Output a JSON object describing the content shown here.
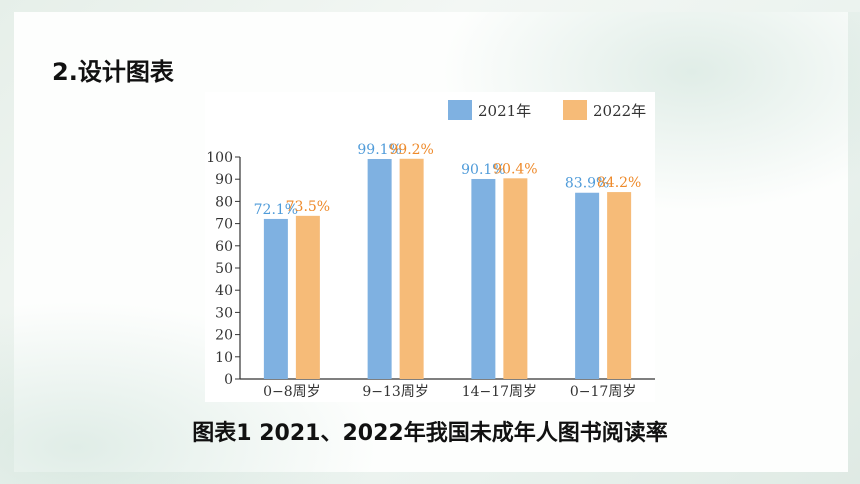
{
  "heading": "2.设计图表",
  "caption": "图表1 2021、2022年我国未成年人图书阅读率",
  "colors": {
    "s2021": "#7fb1e1",
    "s2022": "#f6bb78",
    "label2021": "#4f9bd9",
    "label2022": "#ee8a2b"
  },
  "chart_data": {
    "type": "bar",
    "categories": [
      "0−8周岁",
      "9−13周岁",
      "14−17周岁",
      "0−17周岁"
    ],
    "series": [
      {
        "name": "2021年",
        "values": [
          72.1,
          99.1,
          90.1,
          83.9
        ],
        "labels": [
          "72.1%",
          "99.1%",
          "90.1%",
          "83.9%"
        ]
      },
      {
        "name": "2022年",
        "values": [
          73.5,
          99.2,
          90.4,
          84.2
        ],
        "labels": [
          "73.5%",
          "99.2%",
          "90.4%",
          "84.2%"
        ]
      }
    ],
    "ylim": [
      0,
      100
    ],
    "yticks": [
      "0",
      "10",
      "20",
      "30",
      "40",
      "50",
      "60",
      "70",
      "80",
      "90",
      "100"
    ],
    "legend_position": "top-right",
    "grid": false
  }
}
